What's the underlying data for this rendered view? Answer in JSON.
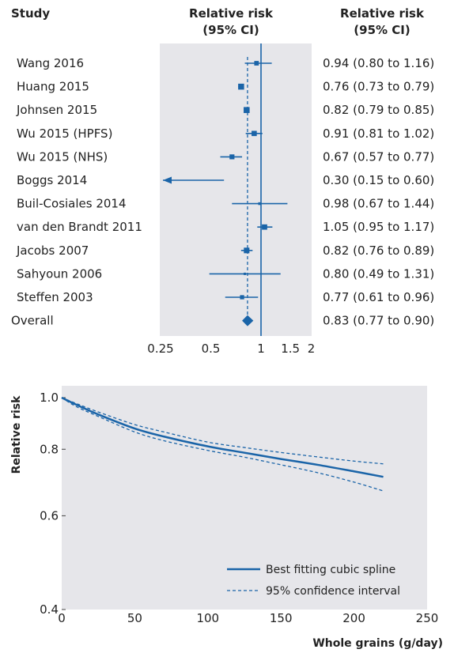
{
  "chart_data": [
    {
      "type": "forest",
      "headers": {
        "study": "Study",
        "plot": "Relative risk (95% CI)",
        "values": "Relative risk (95% CI)"
      },
      "x_scale": "log",
      "xlim": [
        0.25,
        2
      ],
      "x_ticks": [
        "0.25",
        "0.5",
        "1",
        "1.5",
        "2"
      ],
      "reference_line": 1,
      "overall_line": 0.83,
      "colors": {
        "marker": "#1a64a8",
        "background": "#e6e6ea"
      },
      "studies": [
        {
          "study": "Wang 2016",
          "rr": 0.94,
          "lo": 0.8,
          "hi": 1.16,
          "label": "0.94 (0.80 to 1.16)"
        },
        {
          "study": "Huang 2015",
          "rr": 0.76,
          "lo": 0.73,
          "hi": 0.79,
          "label": "0.76 (0.73 to 0.79)"
        },
        {
          "study": "Johnsen 2015",
          "rr": 0.82,
          "lo": 0.79,
          "hi": 0.85,
          "label": "0.82 (0.79 to 0.85)"
        },
        {
          "study": "Wu 2015 (HPFS)",
          "rr": 0.91,
          "lo": 0.81,
          "hi": 1.02,
          "label": "0.91 (0.81 to 1.02)"
        },
        {
          "study": "Wu 2015 (NHS)",
          "rr": 0.67,
          "lo": 0.57,
          "hi": 0.77,
          "label": "0.67 (0.57 to 0.77)"
        },
        {
          "study": "Boggs 2014",
          "rr": 0.3,
          "lo": 0.15,
          "hi": 0.6,
          "label": "0.30 (0.15 to 0.60)",
          "truncated_low": true
        },
        {
          "study": "Buil-Cosiales 2014",
          "rr": 0.98,
          "lo": 0.67,
          "hi": 1.44,
          "label": "0.98 (0.67 to 1.44)"
        },
        {
          "study": "van den Brandt 2011",
          "rr": 1.05,
          "lo": 0.95,
          "hi": 1.17,
          "label": "1.05 (0.95 to 1.17)"
        },
        {
          "study": "Jacobs 2007",
          "rr": 0.82,
          "lo": 0.76,
          "hi": 0.89,
          "label": "0.82 (0.76 to 0.89)"
        },
        {
          "study": "Sahyoun 2006",
          "rr": 0.8,
          "lo": 0.49,
          "hi": 1.31,
          "label": "0.80 (0.49 to 1.31)"
        },
        {
          "study": "Steffen 2003",
          "rr": 0.77,
          "lo": 0.61,
          "hi": 0.96,
          "label": "0.77 (0.61 to 0.96)"
        }
      ],
      "overall": {
        "study": "Overall",
        "rr": 0.83,
        "lo": 0.77,
        "hi": 0.9,
        "label": "0.83 (0.77 to 0.90)"
      }
    },
    {
      "type": "line",
      "xlabel": "Whole grains (g/day)",
      "ylabel": "Relative risk",
      "xlim": [
        0,
        250
      ],
      "ylim": [
        0.4,
        1.0
      ],
      "y_scale": "log",
      "x_ticks": [
        "0",
        "50",
        "100",
        "150",
        "200",
        "250"
      ],
      "y_ticks": [
        "0.4",
        "0.6",
        "0.8",
        "1.0"
      ],
      "legend_position": "bottom-right",
      "x": [
        0,
        10,
        25,
        50,
        70,
        100,
        125,
        150,
        175,
        200,
        220
      ],
      "series": [
        {
          "name": "Best fitting cubic spline",
          "style": "solid",
          "values": [
            1.0,
            0.97,
            0.93,
            0.875,
            0.845,
            0.81,
            0.788,
            0.767,
            0.748,
            0.727,
            0.71
          ]
        },
        {
          "name": "95% confidence interval",
          "style": "dashed",
          "values": [
            1.0,
            0.975,
            0.94,
            0.89,
            0.862,
            0.825,
            0.806,
            0.789,
            0.774,
            0.76,
            0.751
          ]
        },
        {
          "name": "",
          "style": "dashed",
          "values": [
            1.0,
            0.962,
            0.922,
            0.862,
            0.83,
            0.796,
            0.773,
            0.748,
            0.723,
            0.694,
            0.668
          ]
        }
      ],
      "colors": {
        "line": "#1a64a8",
        "background": "#e6e6ea"
      }
    }
  ]
}
